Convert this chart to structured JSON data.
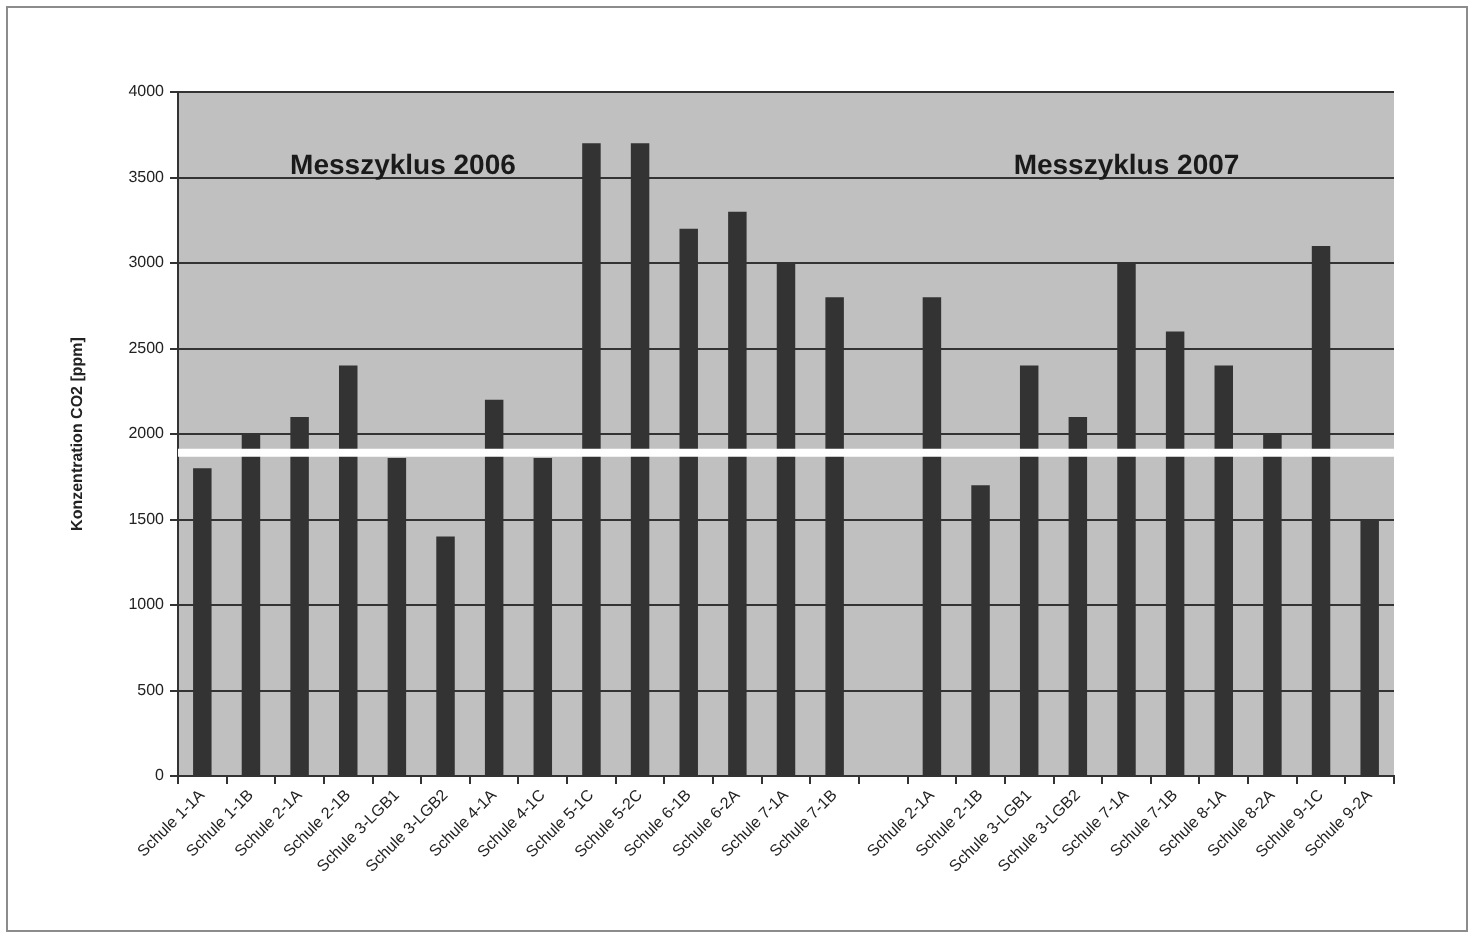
{
  "chart_data": {
    "type": "bar",
    "ylabel": "Konzentration CO2 [ppm]",
    "categories": [
      "Schule 1-1A",
      "Schule 1-1B",
      "Schule 2-1A",
      "Schule 2-1B",
      "Schule 3-LGB1",
      "Schule 3-LGB2",
      "Schule 4-1A",
      "Schule 4-1C",
      "Schule 5-1C",
      "Schule 5-2C",
      "Schule 6-1B",
      "Schule 6-2A",
      "Schule 7-1A",
      "Schule 7-1B",
      null,
      "Schule 2-1A",
      "Schule 2-1B",
      "Schule 3-LGB1",
      "Schule 3-LGB2",
      "Schule 7-1A",
      "Schule 7-1B",
      "Schule 8-1A",
      "Schule 8-2A",
      "Schule 9-1C",
      "Schule 9-2A"
    ],
    "values": [
      1800,
      2000,
      2100,
      2400,
      1860,
      1400,
      2200,
      1860,
      3700,
      3700,
      3200,
      3300,
      3000,
      2800,
      null,
      2800,
      1700,
      2400,
      2100,
      3000,
      2600,
      2400,
      2000,
      3100,
      1500
    ],
    "color": "#333333",
    "ylim": [
      0,
      4000
    ],
    "yticks": [
      0,
      500,
      1000,
      1500,
      2000,
      2500,
      3000,
      3500,
      4000
    ],
    "grid": "y",
    "annotations": [
      "Messzyklus 2006",
      "Messzyklus 2007"
    ],
    "ref_lines": [
      {
        "axis": "y",
        "value": 1890,
        "color": "#ffffff"
      }
    ]
  }
}
